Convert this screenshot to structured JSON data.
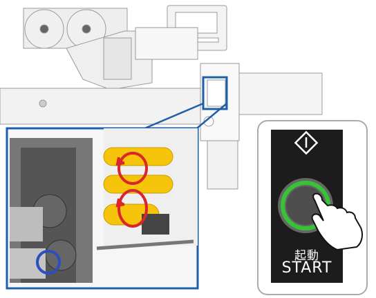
{
  "start_panel": {
    "label_jp": "起動",
    "label_en": "START",
    "ring_color": "#36c436",
    "panel_color": "#1c1c1c"
  },
  "colors": {
    "callout_border": "#1f5fa8",
    "roller_yellow": "#f6c40a",
    "arrow_red": "#d8262a"
  },
  "icons": [
    "power-diamond-icon",
    "pointing-hand-icon",
    "rotation-arrow-icon"
  ]
}
